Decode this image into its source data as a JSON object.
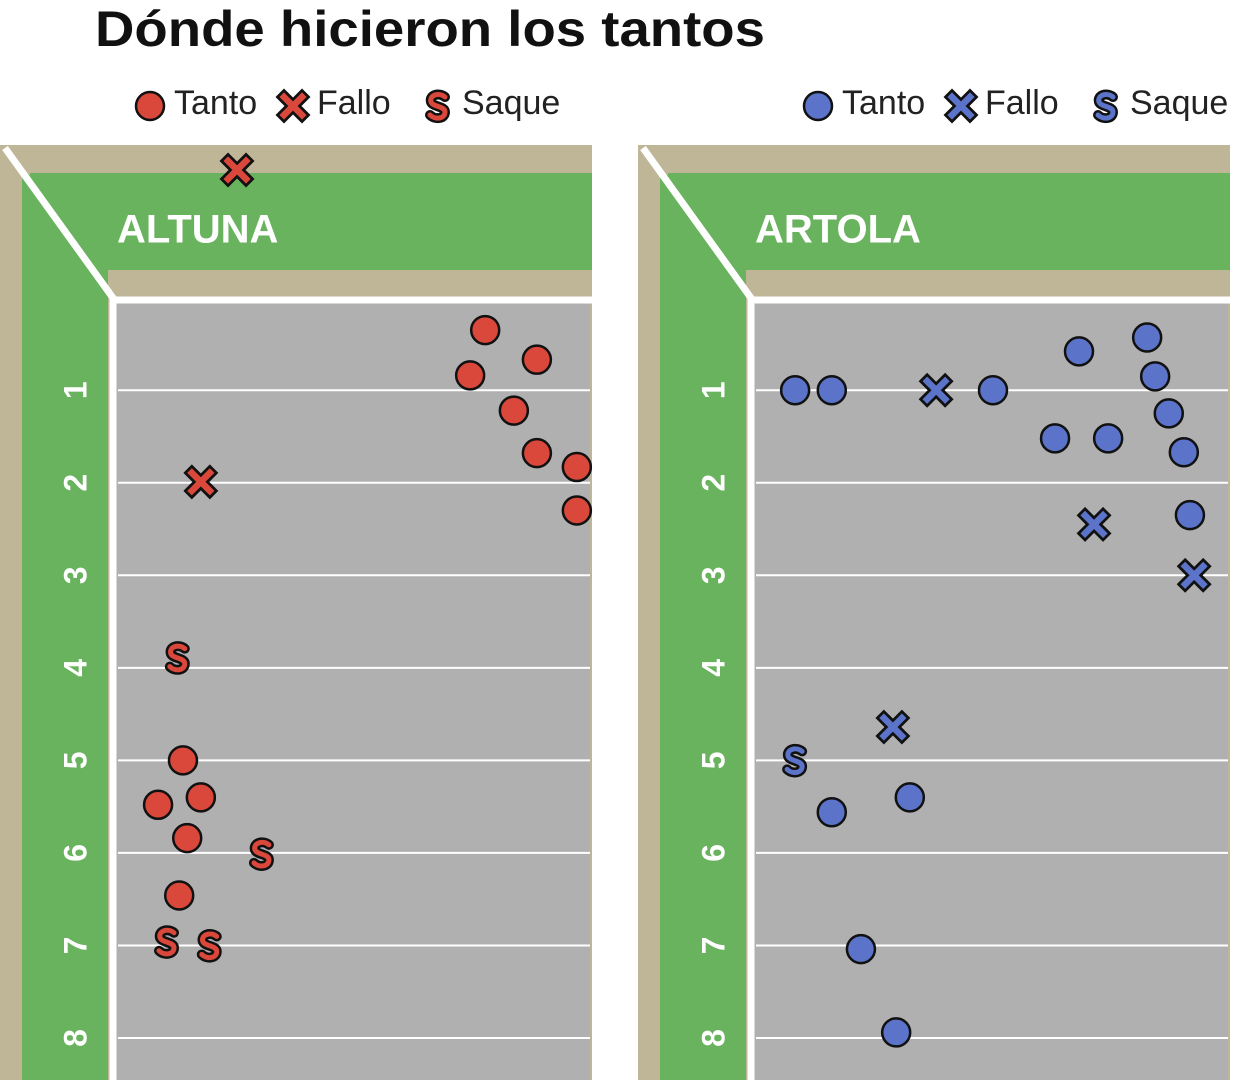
{
  "title": "Dónde hicieron los tantos",
  "chart_data": [
    {
      "type": "scatter",
      "title": "ALTUNA",
      "xlim": [
        0,
        1
      ],
      "ylim": [
        -1.65,
        8.4
      ],
      "yticks": [
        1,
        2,
        3,
        4,
        5,
        6,
        7,
        8
      ],
      "series": [
        {
          "name": "Tanto",
          "color": "#d9483b",
          "marker": "circle",
          "x": [
            0.777,
            0.887,
            0.745,
            0.838,
            0.887,
            0.972,
            0.972,
            0.134,
            0.081,
            0.172,
            0.143,
            0.126
          ],
          "y": [
            0.35,
            0.67,
            0.84,
            1.22,
            1.68,
            1.83,
            2.3,
            5.0,
            5.48,
            5.4,
            5.84,
            6.46
          ]
        },
        {
          "name": "Fallo",
          "color": "#d9483b",
          "marker": "x",
          "x": [
            0.249,
            0.172
          ],
          "y": [
            -1.38,
            1.99
          ]
        },
        {
          "name": "Saque",
          "color": "#d9483b",
          "marker": "s",
          "x": [
            0.123,
            0.302,
            0.1,
            0.191
          ],
          "y": [
            3.89,
            6.01,
            6.96,
            7.0
          ]
        }
      ]
    },
    {
      "type": "scatter",
      "title": "ARTOLA",
      "xlim": [
        0,
        1
      ],
      "ylim": [
        -1.65,
        8.4
      ],
      "yticks": [
        1,
        2,
        3,
        4,
        5,
        6,
        7,
        8
      ],
      "series": [
        {
          "name": "Tanto",
          "color": "#5b73c9",
          "marker": "circle",
          "x": [
            0.079,
            0.157,
            0.5,
            0.683,
            0.828,
            0.845,
            0.874,
            0.632,
            0.745,
            0.906,
            0.919,
            0.157,
            0.323,
            0.219,
            0.294
          ],
          "y": [
            1.0,
            1.0,
            1.0,
            0.58,
            0.43,
            0.85,
            1.25,
            1.52,
            1.52,
            1.67,
            2.35,
            5.56,
            5.4,
            7.04,
            7.94
          ]
        },
        {
          "name": "Fallo",
          "color": "#5b73c9",
          "marker": "x",
          "x": [
            0.379,
            0.715,
            0.928,
            0.287
          ],
          "y": [
            1.0,
            2.45,
            3.0,
            4.64
          ]
        },
        {
          "name": "Saque",
          "color": "#5b73c9",
          "marker": "s",
          "x": [
            0.079
          ],
          "y": [
            5.0
          ]
        }
      ]
    }
  ]
}
